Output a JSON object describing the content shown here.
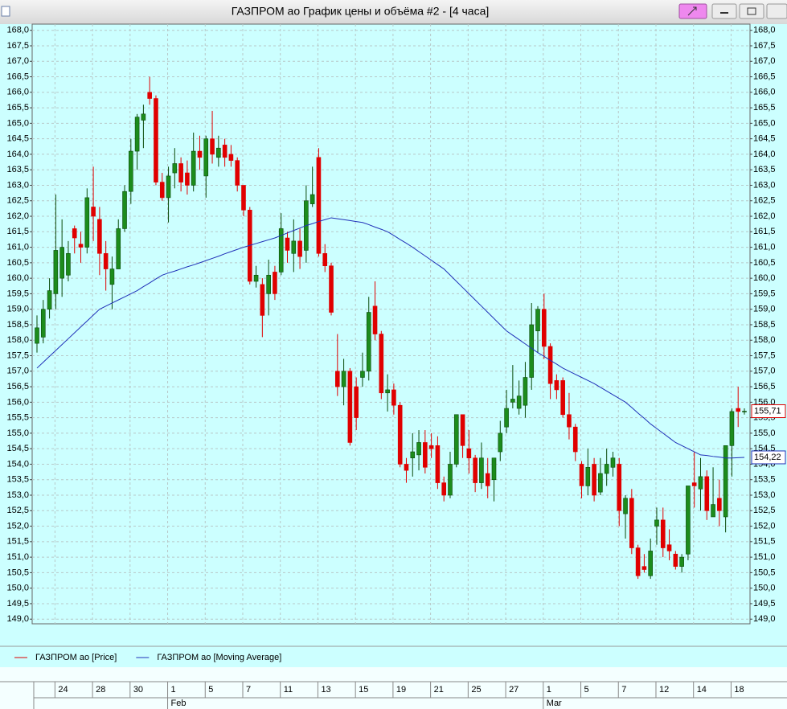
{
  "window": {
    "title": "ГАЗПРОМ ао График цены и объёма #2 - [4 часа]"
  },
  "chart_data": {
    "type": "candlestick",
    "categories": [
      null,
      null,
      null,
      "24",
      null,
      null,
      null,
      null,
      null,
      "28",
      null,
      null,
      null,
      null,
      null,
      "30",
      null,
      null,
      null,
      null,
      null,
      "1",
      null,
      null,
      null,
      null,
      null,
      "5",
      null,
      null,
      null,
      null,
      null,
      "7",
      null,
      null,
      null,
      null,
      null,
      "11",
      null,
      null,
      null,
      null,
      null,
      "13",
      null,
      null,
      null,
      null,
      null,
      "15",
      null,
      null,
      null,
      null,
      null,
      "19",
      null,
      null,
      null,
      null,
      null,
      "21",
      null,
      null,
      null,
      null,
      null,
      "25",
      null,
      null,
      null,
      null,
      null,
      "27",
      null,
      null,
      null,
      null,
      null,
      "1",
      null,
      null,
      null,
      null,
      null,
      "5",
      null,
      null,
      null,
      null,
      null,
      "7",
      null,
      null,
      null,
      null,
      null,
      "12",
      null,
      null,
      null,
      null,
      null,
      "14",
      null,
      null,
      null,
      null,
      null,
      "18",
      null,
      null
    ],
    "months": [
      null,
      null,
      null,
      null,
      null,
      null,
      null,
      null,
      null,
      null,
      null,
      null,
      null,
      null,
      null,
      null,
      null,
      null,
      null,
      null,
      null,
      "Feb",
      null,
      null,
      null,
      null,
      null,
      null,
      null,
      null,
      null,
      null,
      null,
      null,
      null,
      null,
      null,
      null,
      null,
      null,
      null,
      null,
      null,
      null,
      null,
      null,
      null,
      null,
      null,
      null,
      null,
      null,
      null,
      null,
      null,
      null,
      null,
      null,
      null,
      null,
      null,
      null,
      null,
      null,
      null,
      null,
      null,
      null,
      null,
      null,
      null,
      null,
      null,
      null,
      null,
      null,
      null,
      null,
      null,
      null,
      null,
      "Mar",
      null,
      null,
      null,
      null,
      null,
      null,
      null,
      null,
      null,
      null,
      null,
      null,
      null,
      null,
      null,
      null,
      null,
      null,
      null,
      null,
      null,
      null,
      null,
      null,
      null,
      null,
      null,
      null,
      null,
      null,
      null,
      null
    ],
    "series": [
      {
        "name": "ГАЗПРОМ ао [Price]",
        "color": "#dd0000",
        "up_color": "#1c8c1c",
        "down_color": "#e00000",
        "open": [
          157.9,
          158.1,
          159.0,
          159.5,
          160.0,
          160.1,
          161.6,
          161.1,
          161.0,
          162.3,
          161.9,
          160.8,
          159.8,
          160.3,
          161.6,
          162.8,
          164.1,
          165.1,
          166.0,
          165.8,
          163.1,
          162.6,
          163.4,
          163.7,
          163.4,
          163.0,
          164.1,
          163.3,
          164.5,
          163.9,
          164.3,
          164.0,
          163.8,
          163.0,
          162.2,
          159.9,
          159.8,
          159.5,
          160.2,
          160.2,
          161.3,
          160.8,
          161.2,
          160.9,
          162.4,
          163.9,
          160.8,
          160.4,
          157.0,
          156.5,
          157.0,
          156.5,
          156.8,
          157.0,
          159.1,
          158.2,
          156.3,
          156.4,
          155.9,
          154.0,
          154.2,
          154.3,
          154.7,
          154.6,
          154.6,
          153.4,
          153.0,
          154.0,
          155.6,
          154.5,
          154.2,
          153.4,
          153.7,
          153.5,
          154.4,
          155.2,
          156.0,
          155.8,
          155.9,
          156.8,
          158.3,
          159.0,
          157.8,
          156.7,
          156.7,
          155.6,
          155.2,
          154.0,
          153.3,
          154.0,
          153.1,
          153.7,
          153.9,
          154.0,
          152.4,
          152.9,
          151.3,
          150.7,
          150.4,
          152.0,
          152.2,
          151.4,
          151.1,
          150.7,
          151.1,
          153.4,
          153.2,
          153.6,
          152.3,
          152.9,
          152.3,
          154.6,
          155.8,
          155.7
        ],
        "high": [
          158.8,
          159.3,
          160.0,
          162.7,
          161.9,
          161.2,
          161.7,
          161.5,
          162.9,
          163.6,
          162.3,
          161.2,
          160.7,
          161.9,
          163.0,
          164.5,
          165.3,
          165.6,
          166.5,
          165.9,
          163.4,
          163.6,
          164.2,
          163.9,
          163.8,
          164.7,
          164.6,
          164.6,
          165.4,
          164.6,
          164.5,
          164.3,
          163.9,
          163.0,
          162.3,
          160.4,
          160.0,
          160.6,
          160.4,
          162.1,
          161.5,
          161.9,
          161.6,
          163.0,
          163.6,
          164.2,
          161.1,
          160.5,
          158.2,
          157.4,
          157.1,
          156.8,
          157.6,
          159.4,
          159.9,
          158.3,
          156.9,
          156.6,
          156.0,
          154.2,
          155.0,
          155.1,
          155.1,
          155.0,
          154.9,
          153.6,
          154.4,
          155.6,
          155.6,
          155.1,
          154.3,
          154.7,
          154.2,
          154.2,
          155.4,
          156.4,
          157.2,
          156.7,
          157.3,
          159.2,
          159.1,
          159.5,
          157.9,
          156.9,
          156.8,
          156.3,
          155.3,
          154.1,
          154.5,
          154.2,
          154.2,
          154.5,
          154.4,
          154.2,
          153.0,
          153.2,
          151.4,
          151.1,
          151.6,
          152.6,
          152.6,
          151.9,
          151.2,
          151.1,
          153.3,
          154.4,
          154.2,
          153.8,
          153.9,
          153.5,
          154.6,
          155.8,
          156.5,
          155.8
        ],
        "low": [
          157.6,
          157.9,
          158.7,
          159.0,
          159.4,
          159.9,
          160.8,
          160.5,
          160.8,
          161.2,
          160.1,
          159.6,
          159.0,
          160.3,
          161.5,
          162.4,
          163.5,
          164.2,
          165.6,
          163.0,
          162.5,
          161.8,
          162.9,
          162.8,
          162.7,
          162.8,
          163.5,
          162.6,
          163.7,
          163.6,
          163.6,
          163.6,
          162.8,
          162.0,
          159.8,
          159.7,
          158.1,
          158.8,
          159.3,
          160.1,
          160.5,
          160.2,
          160.3,
          160.5,
          162.3,
          160.7,
          160.2,
          158.8,
          156.2,
          155.9,
          154.6,
          155.1,
          156.5,
          156.7,
          158.0,
          156.1,
          155.7,
          155.6,
          153.9,
          153.4,
          153.6,
          153.8,
          153.7,
          154.2,
          153.2,
          152.8,
          152.9,
          153.9,
          154.2,
          153.7,
          153.1,
          153.2,
          152.9,
          152.8,
          154.1,
          155.0,
          155.8,
          155.6,
          155.5,
          156.4,
          157.6,
          157.4,
          156.1,
          156.1,
          155.5,
          154.8,
          154.1,
          152.9,
          153.0,
          152.8,
          153.0,
          153.3,
          153.6,
          152.0,
          151.6,
          151.1,
          150.3,
          150.5,
          150.3,
          151.4,
          151.0,
          150.9,
          150.6,
          150.5,
          150.9,
          152.6,
          152.5,
          152.2,
          152.3,
          152.0,
          151.8,
          153.6,
          155.2,
          155.6
        ],
        "close": [
          158.4,
          159.0,
          159.6,
          160.9,
          161.0,
          160.8,
          161.3,
          161.0,
          162.6,
          162.0,
          160.8,
          160.3,
          160.3,
          161.6,
          162.8,
          164.1,
          165.2,
          165.3,
          165.8,
          163.1,
          162.6,
          163.3,
          163.7,
          163.1,
          163.0,
          164.1,
          163.9,
          164.5,
          164.0,
          164.2,
          163.9,
          163.8,
          163.0,
          162.2,
          159.9,
          160.1,
          158.8,
          160.1,
          159.5,
          161.6,
          160.9,
          161.2,
          160.7,
          162.5,
          162.7,
          160.8,
          160.4,
          158.9,
          156.5,
          157.0,
          154.7,
          155.5,
          157.0,
          158.9,
          158.2,
          156.3,
          156.4,
          155.9,
          154.0,
          153.8,
          154.4,
          154.7,
          153.9,
          154.5,
          153.4,
          153.0,
          154.0,
          155.6,
          154.6,
          154.2,
          153.4,
          154.2,
          153.3,
          154.2,
          155.0,
          155.8,
          156.1,
          156.2,
          156.8,
          158.5,
          159.0,
          157.8,
          156.6,
          156.4,
          155.6,
          155.2,
          154.4,
          153.3,
          153.9,
          153.0,
          153.7,
          154.0,
          154.2,
          152.5,
          152.9,
          151.3,
          150.4,
          150.6,
          151.2,
          152.2,
          151.3,
          151.2,
          150.7,
          151.0,
          153.3,
          153.3,
          153.6,
          152.5,
          152.7,
          152.5,
          154.6,
          155.7,
          155.7,
          155.71
        ],
        "last_label": "155,71"
      },
      {
        "name": "ГАЗПРОМ ао [Moving Average]",
        "type": "line",
        "color": "#2030b8",
        "values": [
          157.1,
          157.29,
          157.48,
          157.67,
          157.86,
          158.05,
          158.24,
          158.43,
          158.62,
          158.81,
          159.0,
          159.1,
          159.2,
          159.3,
          159.4,
          159.5,
          159.6,
          159.73,
          159.85,
          159.98,
          160.1,
          160.17,
          160.23,
          160.3,
          160.37,
          160.43,
          160.5,
          160.57,
          160.64,
          160.71,
          160.79,
          160.86,
          160.93,
          161.0,
          161.06,
          161.12,
          161.18,
          161.24,
          161.3,
          161.38,
          161.46,
          161.54,
          161.62,
          161.7,
          161.76,
          161.83,
          161.89,
          161.95,
          161.92,
          161.89,
          161.86,
          161.83,
          161.8,
          161.73,
          161.65,
          161.58,
          161.5,
          161.38,
          161.25,
          161.13,
          161.0,
          160.86,
          160.72,
          160.58,
          160.44,
          160.3,
          160.1,
          159.9,
          159.7,
          159.5,
          159.3,
          159.1,
          158.9,
          158.7,
          158.5,
          158.3,
          158.16,
          158.02,
          157.88,
          157.74,
          157.6,
          157.48,
          157.35,
          157.23,
          157.1,
          157.0,
          156.9,
          156.8,
          156.7,
          156.6,
          156.48,
          156.36,
          156.24,
          156.12,
          156.0,
          155.83,
          155.65,
          155.48,
          155.3,
          155.15,
          155.0,
          154.85,
          154.7,
          154.6,
          154.5,
          154.4,
          154.3,
          154.28,
          154.25,
          154.23,
          154.2,
          154.2,
          154.21,
          154.22
        ],
        "last_label": "154,22"
      }
    ],
    "ylim": [
      148.85,
      168.2
    ],
    "yticks": [
      {
        "value": 149,
        "label": "149,0"
      },
      {
        "value": 149.5,
        "label": "149,5"
      },
      {
        "value": 150,
        "label": "150,0"
      },
      {
        "value": 150.5,
        "label": "150,5"
      },
      {
        "value": 151,
        "label": "151,0"
      },
      {
        "value": 151.5,
        "label": "151,5"
      },
      {
        "value": 152,
        "label": "152,0"
      },
      {
        "value": 152.5,
        "label": "152,5"
      },
      {
        "value": 153,
        "label": "153,0"
      },
      {
        "value": 153.5,
        "label": "153,5"
      },
      {
        "value": 154,
        "label": "154,0"
      },
      {
        "value": 154.5,
        "label": "154,5"
      },
      {
        "value": 155,
        "label": "155,0"
      },
      {
        "value": 155.5,
        "label": "155,5"
      },
      {
        "value": 156,
        "label": "156,0"
      },
      {
        "value": 156.5,
        "label": "156,5"
      },
      {
        "value": 157,
        "label": "157,0"
      },
      {
        "value": 157.5,
        "label": "157,5"
      },
      {
        "value": 158,
        "label": "158,0"
      },
      {
        "value": 158.5,
        "label": "158,5"
      },
      {
        "value": 159,
        "label": "159,0"
      },
      {
        "value": 159.5,
        "label": "159,5"
      },
      {
        "value": 160,
        "label": "160,0"
      },
      {
        "value": 160.5,
        "label": "160,5"
      },
      {
        "value": 161,
        "label": "161,0"
      },
      {
        "value": 161.5,
        "label": "161,5"
      },
      {
        "value": 162,
        "label": "162,0"
      },
      {
        "value": 162.5,
        "label": "162,5"
      },
      {
        "value": 163,
        "label": "163,0"
      },
      {
        "value": 163.5,
        "label": "163,5"
      },
      {
        "value": 164,
        "label": "164,0"
      },
      {
        "value": 164.5,
        "label": "164,5"
      },
      {
        "value": 165,
        "label": "165,0"
      },
      {
        "value": 165.5,
        "label": "165,5"
      },
      {
        "value": 166,
        "label": "166,0"
      },
      {
        "value": 166.5,
        "label": "166,5"
      },
      {
        "value": 167,
        "label": "167,0"
      },
      {
        "value": 167.5,
        "label": "167,5"
      },
      {
        "value": 168,
        "label": "168,0"
      }
    ],
    "grid": true
  }
}
